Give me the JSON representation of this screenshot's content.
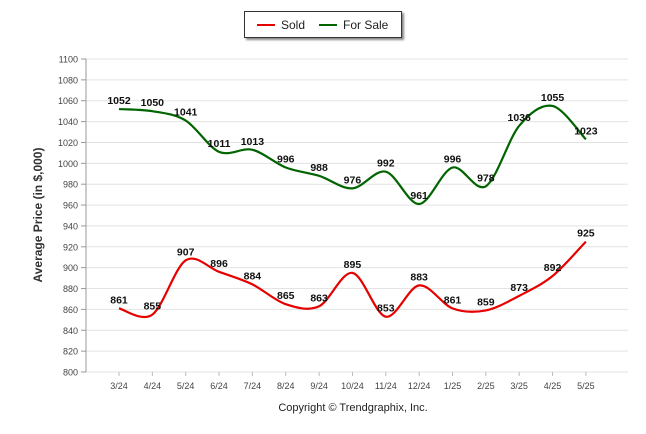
{
  "chart_data": {
    "type": "line",
    "categories": [
      "3/24",
      "4/24",
      "5/24",
      "6/24",
      "7/24",
      "8/24",
      "9/24",
      "10/24",
      "11/24",
      "12/24",
      "1/25",
      "2/25",
      "3/25",
      "4/25",
      "5/25"
    ],
    "series": [
      {
        "name": "Sold",
        "color": "#e60000",
        "values": [
          861,
          855,
          907,
          896,
          884,
          865,
          863,
          895,
          853,
          883,
          861,
          859,
          873,
          892,
          925
        ]
      },
      {
        "name": "For Sale",
        "color": "#006400",
        "values": [
          1052,
          1050,
          1041,
          1011,
          1013,
          996,
          988,
          976,
          992,
          961,
          996,
          978,
          1036,
          1055,
          1023
        ]
      }
    ],
    "ylabel": "Average Price (in $,000)",
    "xlabel": "",
    "ylim": [
      800,
      1100
    ],
    "yticks": [
      800,
      820,
      840,
      860,
      880,
      900,
      920,
      940,
      960,
      980,
      1000,
      1020,
      1040,
      1060,
      1080,
      1100
    ],
    "grid": true,
    "legend_position": "top-center"
  },
  "legend": {
    "sold": "Sold",
    "for_sale": "For Sale"
  },
  "copyright": "Copyright © Trendgraphix, Inc."
}
